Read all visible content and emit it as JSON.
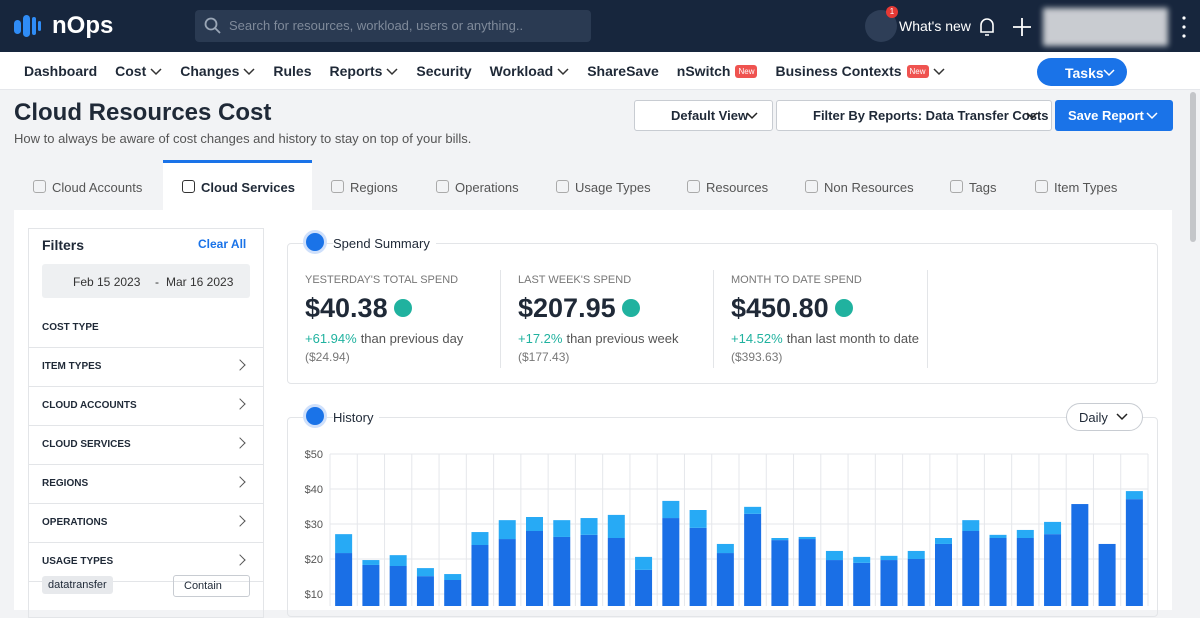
{
  "topbar": {
    "logo": "nOps",
    "search_placeholder": "Search for resources, workload, users or anything..",
    "notification_count": "1",
    "whats_new": "What's new"
  },
  "nav": {
    "items": [
      {
        "label": "Dashboard"
      },
      {
        "label": "Cost",
        "menu": true
      },
      {
        "label": "Changes",
        "menu": true
      },
      {
        "label": "Rules"
      },
      {
        "label": "Reports",
        "menu": true
      },
      {
        "label": "Security"
      },
      {
        "label": "Workload",
        "menu": true
      },
      {
        "label": "ShareSave"
      },
      {
        "label": "nSwitch",
        "badge": "New"
      },
      {
        "label": "Business Contexts",
        "badge": "New",
        "menu": true
      }
    ],
    "tasks": "Tasks"
  },
  "header": {
    "title": "Cloud Resources Cost",
    "subtitle": "How to always be aware of cost changes and history to stay on top of your bills.",
    "view_button": "Default View",
    "filter_button": "Filter By Reports: Data Transfer Costs",
    "save_button": "Save Report"
  },
  "tabs": {
    "items": [
      "Cloud Accounts",
      "Cloud Services",
      "Regions",
      "Operations",
      "Usage Types",
      "Resources",
      "Non Resources",
      "Tags",
      "Item Types"
    ],
    "active": 1
  },
  "filters": {
    "title": "Filters",
    "clear": "Clear All",
    "date_from": "Feb 15 2023",
    "date_separator": "-",
    "date_to": "Mar 16 2023",
    "sections": [
      "COST TYPE",
      "ITEM TYPES",
      "CLOUD ACCOUNTS",
      "CLOUD SERVICES",
      "REGIONS",
      "OPERATIONS",
      "USAGE TYPES"
    ],
    "tag": "datatransfer",
    "match": "Contain"
  },
  "spend_summary": {
    "title": "Spend Summary",
    "cards": [
      {
        "label": "YESTERDAY'S TOTAL SPEND",
        "value": "$40.38",
        "change": "+61.94%",
        "change_text": "than previous day",
        "previous": "($24.94)"
      },
      {
        "label": "LAST WEEK'S SPEND",
        "value": "$207.95",
        "change": "+17.2%",
        "change_text": "than previous week",
        "previous": "($177.43)"
      },
      {
        "label": "MONTH TO DATE SPEND",
        "value": "$450.80",
        "change": "+14.52%",
        "change_text": "than last month to date",
        "previous": "($393.63)"
      }
    ]
  },
  "history": {
    "title": "History",
    "period": "Daily",
    "chart_data": {
      "type": "bar",
      "stacked": true,
      "grid": true,
      "ylim": [
        0,
        50
      ],
      "yticks": [
        {
          "value": 10,
          "label": "$10"
        },
        {
          "value": 20,
          "label": "$20"
        },
        {
          "value": 30,
          "label": "$30"
        },
        {
          "value": 40,
          "label": "$40"
        },
        {
          "value": 50,
          "label": "$50"
        }
      ],
      "series": [
        {
          "color": "#1a6fe6",
          "values": [
            21.7,
            18.3,
            18.0,
            15.1,
            14.0,
            24.0,
            25.7,
            28.0,
            26.3,
            26.9,
            26.0,
            16.9,
            31.7,
            28.9,
            21.7,
            32.9,
            25.4,
            25.7,
            19.7,
            18.9,
            19.7,
            20.0,
            24.3,
            28.0,
            26.0,
            26.0,
            27.1,
            35.7,
            24.3,
            37.1
          ]
        },
        {
          "color": "#27aaf5",
          "values": [
            5.4,
            1.4,
            3.1,
            2.3,
            1.7,
            3.7,
            5.4,
            4.0,
            4.8,
            4.8,
            6.6,
            3.7,
            4.9,
            5.1,
            2.6,
            2.0,
            0.6,
            0.6,
            2.6,
            1.7,
            1.2,
            2.3,
            1.7,
            3.1,
            0.9,
            2.3,
            3.5,
            0,
            0,
            2.3
          ]
        }
      ]
    }
  }
}
